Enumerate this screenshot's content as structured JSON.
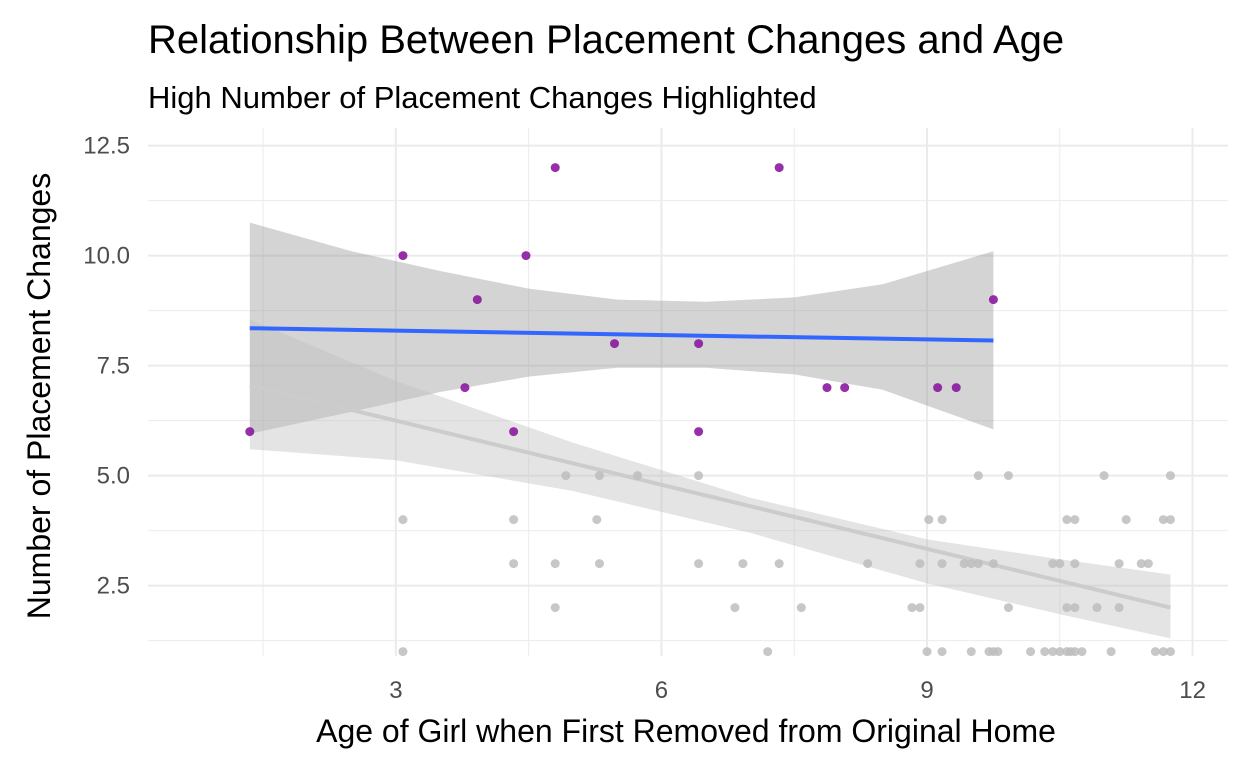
{
  "chart_data": {
    "type": "scatter",
    "title": "Relationship Between Placement Changes and Age",
    "subtitle": "High Number of Placement Changes Highlighted",
    "xlabel": "Age of Girl when First Removed from Original Home",
    "ylabel": "Number of Placement Changes",
    "xlim": [
      0.2,
      12.4
    ],
    "ylim": [
      0.9,
      12.9
    ],
    "x_ticks": [
      3,
      6,
      9,
      12
    ],
    "x_tick_labels": [
      "3",
      "6",
      "9",
      "12"
    ],
    "y_ticks": [
      2.5,
      5.0,
      7.5,
      10.0,
      12.5
    ],
    "y_tick_labels": [
      "2.5",
      "5.0",
      "7.5",
      "10.0",
      "12.5"
    ],
    "grid": true,
    "colors": {
      "highlight_points": "#8b1a9e",
      "other_points": "#bdbdbd",
      "highlight_trend": "#3366ff",
      "other_trend": "#cccccc",
      "highlight_band": "#999999",
      "other_band": "#bfbfbf",
      "grid": "#ebebeb"
    },
    "series": [
      {
        "group": "high",
        "points": [
          [
            1.35,
            6
          ],
          [
            3.08,
            10
          ],
          [
            3.78,
            7
          ],
          [
            3.92,
            9
          ],
          [
            4.33,
            6
          ],
          [
            4.47,
            10
          ],
          [
            4.8,
            12
          ],
          [
            5.47,
            8
          ],
          [
            6.42,
            8
          ],
          [
            6.42,
            6
          ],
          [
            7.33,
            12
          ],
          [
            7.87,
            7
          ],
          [
            8.07,
            7
          ],
          [
            9.12,
            7
          ],
          [
            9.33,
            7
          ],
          [
            9.75,
            9
          ]
        ],
        "trend": {
          "x": [
            1.35,
            9.75
          ],
          "y": [
            8.35,
            8.07
          ]
        },
        "band": {
          "x": [
            1.35,
            2.5,
            3.5,
            4.5,
            5.5,
            6.5,
            7.5,
            8.5,
            9.75
          ],
          "lower": [
            5.95,
            6.45,
            6.9,
            7.25,
            7.45,
            7.45,
            7.3,
            6.95,
            6.05
          ],
          "upper": [
            10.75,
            10.1,
            9.65,
            9.25,
            9.0,
            8.95,
            9.05,
            9.35,
            10.1
          ]
        }
      },
      {
        "group": "other",
        "points": [
          [
            3.08,
            4
          ],
          [
            3.08,
            1
          ],
          [
            4.33,
            4
          ],
          [
            4.33,
            3
          ],
          [
            4.8,
            3
          ],
          [
            4.8,
            2
          ],
          [
            4.92,
            5
          ],
          [
            5.27,
            4
          ],
          [
            5.3,
            5
          ],
          [
            5.3,
            3
          ],
          [
            5.73,
            5
          ],
          [
            6.42,
            5
          ],
          [
            6.42,
            3
          ],
          [
            6.83,
            2
          ],
          [
            6.92,
            3
          ],
          [
            7.2,
            1
          ],
          [
            7.33,
            3
          ],
          [
            7.58,
            2
          ],
          [
            8.33,
            3
          ],
          [
            8.83,
            2
          ],
          [
            8.92,
            3
          ],
          [
            8.92,
            2
          ],
          [
            9.0,
            1
          ],
          [
            9.02,
            4
          ],
          [
            9.17,
            4
          ],
          [
            9.17,
            3
          ],
          [
            9.17,
            1
          ],
          [
            9.42,
            3
          ],
          [
            9.5,
            1
          ],
          [
            9.5,
            3
          ],
          [
            9.58,
            5
          ],
          [
            9.58,
            3
          ],
          [
            9.7,
            1
          ],
          [
            9.75,
            1
          ],
          [
            9.75,
            3
          ],
          [
            9.8,
            1
          ],
          [
            9.92,
            5
          ],
          [
            9.92,
            2
          ],
          [
            10.17,
            1
          ],
          [
            10.33,
            1
          ],
          [
            10.42,
            3
          ],
          [
            10.42,
            1
          ],
          [
            10.5,
            1
          ],
          [
            10.5,
            3
          ],
          [
            10.58,
            4
          ],
          [
            10.58,
            2
          ],
          [
            10.58,
            1
          ],
          [
            10.62,
            1
          ],
          [
            10.67,
            4
          ],
          [
            10.67,
            3
          ],
          [
            10.67,
            2
          ],
          [
            10.67,
            1
          ],
          [
            10.75,
            1
          ],
          [
            10.92,
            2
          ],
          [
            11.0,
            5
          ],
          [
            11.08,
            1
          ],
          [
            11.17,
            2
          ],
          [
            11.17,
            3
          ],
          [
            11.25,
            4
          ],
          [
            11.42,
            3
          ],
          [
            11.5,
            3
          ],
          [
            11.58,
            1
          ],
          [
            11.67,
            4
          ],
          [
            11.67,
            1
          ],
          [
            11.75,
            5
          ],
          [
            11.75,
            4
          ],
          [
            11.75,
            1
          ]
        ],
        "trend": {
          "x": [
            1.35,
            11.75
          ],
          "y": [
            7.05,
            2.0
          ]
        },
        "band": {
          "x": [
            1.35,
            3.0,
            5.0,
            7.0,
            9.0,
            10.5,
            11.75
          ],
          "lower": [
            5.6,
            5.35,
            4.65,
            3.7,
            2.55,
            1.85,
            1.3
          ],
          "upper": [
            8.55,
            7.15,
            5.75,
            4.5,
            3.55,
            3.1,
            2.75
          ]
        }
      }
    ]
  }
}
